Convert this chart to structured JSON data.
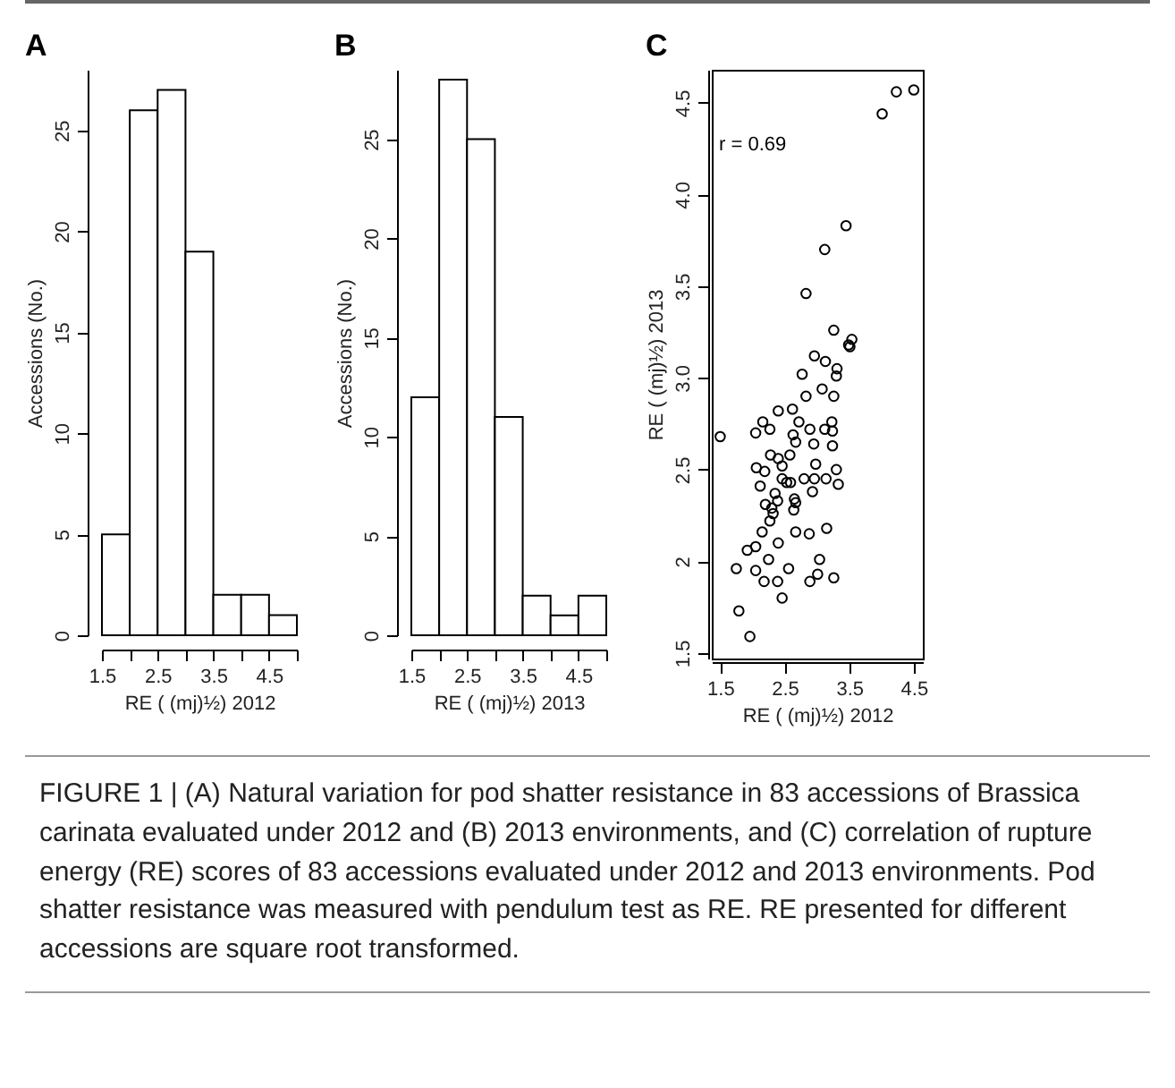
{
  "chart_data": [
    {
      "type": "histogram",
      "title": "A",
      "xlabel": "RE ( (mj)½) 2012",
      "ylabel": "Accessions (No.)",
      "bins": [
        1.5,
        2,
        2.5,
        3,
        3.5,
        4,
        4.5,
        5
      ],
      "values": [
        5,
        26,
        27,
        19,
        2,
        2,
        1
      ],
      "xlim": [
        1.5,
        5
      ],
      "xticks": [
        1.5,
        {
          "value": 2,
          "label": null
        },
        2.5,
        {
          "value": 3,
          "label": null
        },
        3.5,
        {
          "value": 4,
          "label": null
        },
        4.5,
        {
          "value": 5,
          "label": null
        }
      ],
      "ylim": [
        0,
        28
      ],
      "yticks": [
        0,
        5,
        10,
        15,
        20,
        25
      ]
    },
    {
      "type": "histogram",
      "title": "B",
      "xlabel": "RE ( (mj)½) 2013",
      "ylabel": "Accessions (No.)",
      "bins": [
        1.5,
        2,
        2.5,
        3,
        3.5,
        4,
        4.5,
        5
      ],
      "values": [
        12,
        28,
        25,
        11,
        2,
        1,
        2
      ],
      "xlim": [
        1.5,
        5
      ],
      "xticks": [
        1.5,
        {
          "value": 2,
          "label": null
        },
        2.5,
        {
          "value": 3,
          "label": null
        },
        3.5,
        {
          "value": 4,
          "label": null
        },
        4.5,
        {
          "value": 5,
          "label": null
        }
      ],
      "ylim": [
        0,
        28.5
      ],
      "yticks": [
        0,
        5,
        10,
        15,
        20,
        25
      ]
    },
    {
      "type": "scatter",
      "title": "C",
      "xlabel": "RE ( (mj)½) 2012",
      "ylabel": "RE ( (mj)½) 2013",
      "marker": "circle",
      "x": [
        4.5,
        4.23,
        4.01,
        3.45,
        3.12,
        2.83,
        3.26,
        3.54,
        3.49,
        3.51,
        2.96,
        3.13,
        3.31,
        3.3,
        2.77,
        3.08,
        2.83,
        3.26,
        2.4,
        2.62,
        1.5,
        2.05,
        2.16,
        2.27,
        2.72,
        2.63,
        2.67,
        2.89,
        3.12,
        3.23,
        3.24,
        3.24,
        2.95,
        2.58,
        2.28,
        2.06,
        2.19,
        2.4,
        2.46,
        2.98,
        3.3,
        3.14,
        2.96,
        2.8,
        3.33,
        2.46,
        2.53,
        2.59,
        2.12,
        2.93,
        2.35,
        2.65,
        2.67,
        2.39,
        2.2,
        2.3,
        2.32,
        2.27,
        2.15,
        2.64,
        2.67,
        2.88,
        3.15,
        2.4,
        1.92,
        2.05,
        1.75,
        2.05,
        2.25,
        2.56,
        3.04,
        3.01,
        2.89,
        3.26,
        2.18,
        2.39,
        2.46,
        1.79,
        1.96
      ],
      "values": [
        4.57,
        4.56,
        4.44,
        3.83,
        3.7,
        3.46,
        3.26,
        3.21,
        3.18,
        3.17,
        3.12,
        3.09,
        3.05,
        3.01,
        3.02,
        2.94,
        2.9,
        2.9,
        2.82,
        2.83,
        2.68,
        2.7,
        2.76,
        2.72,
        2.76,
        2.69,
        2.65,
        2.72,
        2.72,
        2.76,
        2.71,
        2.63,
        2.64,
        2.58,
        2.58,
        2.51,
        2.49,
        2.56,
        2.52,
        2.53,
        2.5,
        2.45,
        2.45,
        2.45,
        2.42,
        2.45,
        2.43,
        2.43,
        2.41,
        2.38,
        2.37,
        2.34,
        2.32,
        2.33,
        2.31,
        2.29,
        2.26,
        2.22,
        2.16,
        2.28,
        2.16,
        2.15,
        2.18,
        2.1,
        2.06,
        2.08,
        1.96,
        1.95,
        2.01,
        1.96,
        2.01,
        1.93,
        1.89,
        1.91,
        1.89,
        1.89,
        1.8,
        1.73,
        1.59
      ],
      "xlim": [
        1.37,
        4.64
      ],
      "xticks": [
        1.5,
        2.5,
        3.5,
        4.5
      ],
      "ylim": [
        1.47,
        4.68
      ],
      "yticks": [
        1.5,
        2,
        2.5,
        {
          "value": 3,
          "label": "3.0"
        },
        3.5,
        {
          "value": 4,
          "label": "4.0"
        },
        4.5
      ],
      "annotations": [
        "r = 0.69",
        "FIGURE 1 | (A) Natural variation for pod shatter resistance in 83 accessions of Brassica carinata evaluated under 2012 and (B) 2013 environments, and (C) correlation of rupture energy (RE) scores of 83 accessions evaluated under 2012 and 2013 environments. Pod shatter resistance was measured with pendulum test as RE. RE presented for different accessions are square root transformed."
      ]
    }
  ]
}
